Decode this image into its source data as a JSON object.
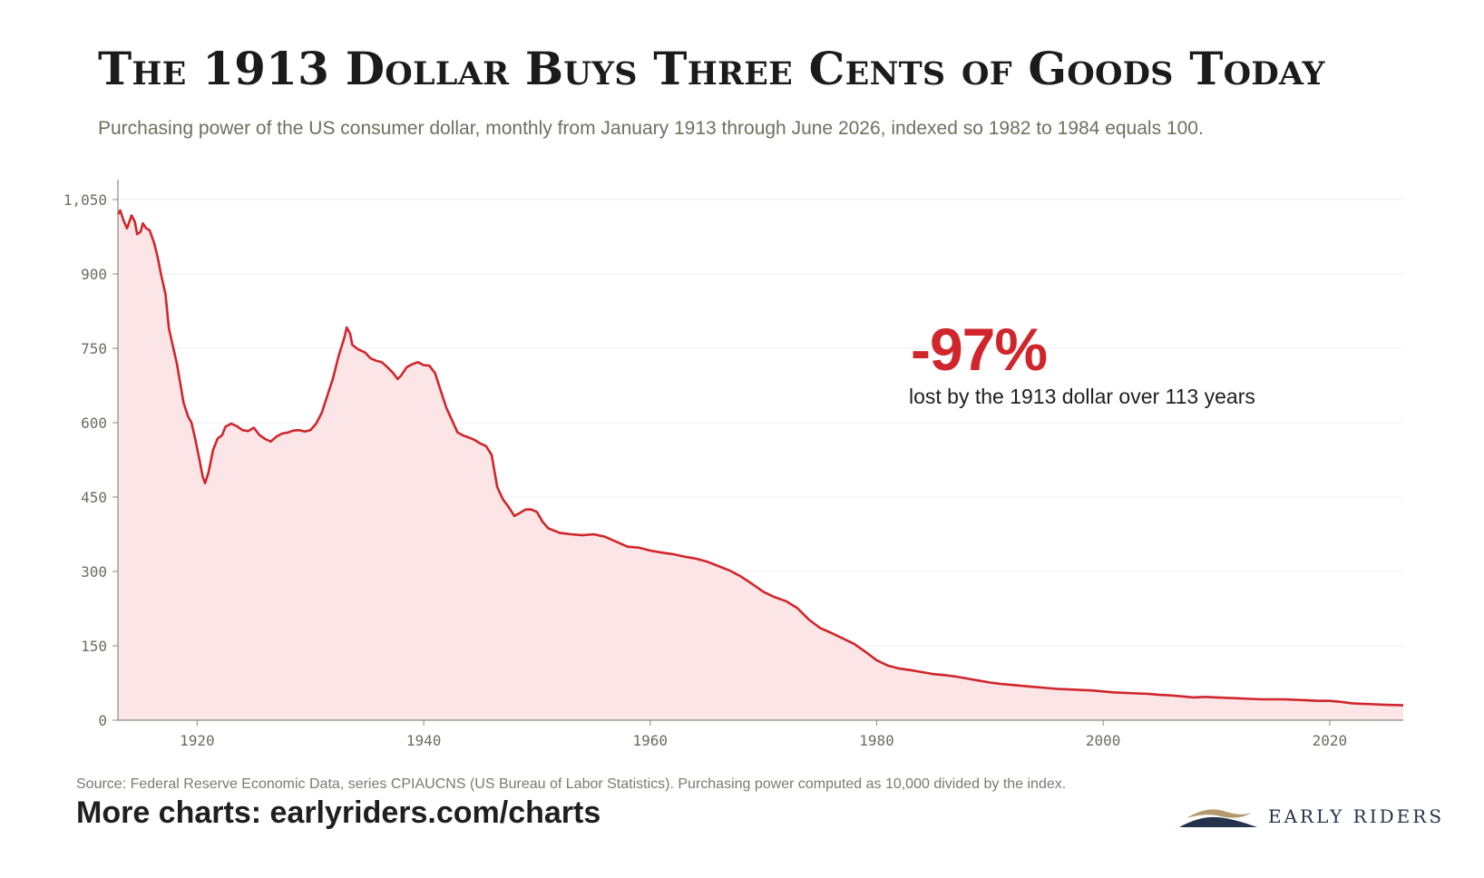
{
  "header": {
    "title": "The 1913 Dollar Buys Three Cents of Goods Today",
    "subtitle": "Purchasing power of the US consumer dollar, monthly from January 1913 through June 2026, indexed so 1982 to 1984 equals 100."
  },
  "annotation": {
    "value": "-97%",
    "text": "lost by the 1913 dollar over 113 years"
  },
  "footer": {
    "source": "Source: Federal Reserve Economic Data, series CPIAUCNS (US Bureau of Labor Statistics). Purchasing power computed as 10,000 divided by the index.",
    "more_charts": "More charts: earlyriders.com/charts",
    "brand": "EARLY RIDERS"
  },
  "colors": {
    "line": "#d0262b",
    "area_fill": "#fbe5e6",
    "gridline": "#ececec",
    "axis": "#8a8a80",
    "brand_navy": "#24324a",
    "brand_gold": "#b39a6e"
  },
  "chart_data": {
    "type": "area",
    "title": "The 1913 Dollar Buys Three Cents of Goods Today",
    "xlabel": "",
    "ylabel": "",
    "xlim": [
      1913,
      2026.5
    ],
    "ylim": [
      0,
      1050
    ],
    "xticks": [
      1920,
      1940,
      1960,
      1980,
      2000,
      2020
    ],
    "yticks": [
      0,
      150,
      300,
      450,
      600,
      750,
      900,
      1050
    ],
    "ytick_labels": [
      "0",
      "150",
      "300",
      "450",
      "600",
      "750",
      "900",
      "1,050"
    ],
    "grid": "horizontal",
    "legend": "none",
    "series": [
      {
        "values": [
          [
            1913.0,
            1020
          ],
          [
            1913.2,
            1028
          ],
          [
            1913.5,
            1008
          ],
          [
            1913.8,
            992
          ],
          [
            1914.2,
            1018
          ],
          [
            1914.5,
            1005
          ],
          [
            1914.7,
            980
          ],
          [
            1915.0,
            985
          ],
          [
            1915.2,
            1002
          ],
          [
            1915.5,
            992
          ],
          [
            1915.8,
            988
          ],
          [
            1916.2,
            962
          ],
          [
            1916.5,
            935
          ],
          [
            1916.8,
            900
          ],
          [
            1917.2,
            860
          ],
          [
            1917.5,
            790
          ],
          [
            1917.8,
            760
          ],
          [
            1918.2,
            720
          ],
          [
            1918.5,
            680
          ],
          [
            1918.8,
            640
          ],
          [
            1919.2,
            612
          ],
          [
            1919.5,
            600
          ],
          [
            1919.8,
            570
          ],
          [
            1920.2,
            525
          ],
          [
            1920.5,
            490
          ],
          [
            1920.7,
            478
          ],
          [
            1921.0,
            500
          ],
          [
            1921.4,
            545
          ],
          [
            1921.8,
            568
          ],
          [
            1922.2,
            575
          ],
          [
            1922.5,
            592
          ],
          [
            1923.0,
            598
          ],
          [
            1923.5,
            593
          ],
          [
            1924.0,
            585
          ],
          [
            1924.5,
            583
          ],
          [
            1925.0,
            590
          ],
          [
            1925.5,
            575
          ],
          [
            1926.0,
            567
          ],
          [
            1926.5,
            562
          ],
          [
            1927.0,
            572
          ],
          [
            1927.5,
            578
          ],
          [
            1928.0,
            580
          ],
          [
            1928.5,
            584
          ],
          [
            1929.0,
            585
          ],
          [
            1929.5,
            582
          ],
          [
            1930.0,
            585
          ],
          [
            1930.5,
            598
          ],
          [
            1931.0,
            620
          ],
          [
            1931.5,
            655
          ],
          [
            1932.0,
            690
          ],
          [
            1932.5,
            735
          ],
          [
            1933.0,
            772
          ],
          [
            1933.2,
            792
          ],
          [
            1933.5,
            780
          ],
          [
            1933.7,
            757
          ],
          [
            1934.2,
            748
          ],
          [
            1934.8,
            742
          ],
          [
            1935.3,
            730
          ],
          [
            1935.8,
            725
          ],
          [
            1936.3,
            722
          ],
          [
            1936.8,
            712
          ],
          [
            1937.3,
            700
          ],
          [
            1937.7,
            688
          ],
          [
            1938.0,
            695
          ],
          [
            1938.5,
            712
          ],
          [
            1939.0,
            718
          ],
          [
            1939.5,
            722
          ],
          [
            1940.0,
            716
          ],
          [
            1940.5,
            715
          ],
          [
            1941.0,
            700
          ],
          [
            1941.5,
            665
          ],
          [
            1942.0,
            630
          ],
          [
            1942.5,
            605
          ],
          [
            1943.0,
            580
          ],
          [
            1943.5,
            574
          ],
          [
            1944.0,
            570
          ],
          [
            1944.5,
            565
          ],
          [
            1945.0,
            558
          ],
          [
            1945.5,
            553
          ],
          [
            1946.0,
            535
          ],
          [
            1946.5,
            470
          ],
          [
            1947.0,
            445
          ],
          [
            1947.5,
            430
          ],
          [
            1948.0,
            412
          ],
          [
            1948.5,
            418
          ],
          [
            1949.0,
            425
          ],
          [
            1949.5,
            425
          ],
          [
            1950.0,
            420
          ],
          [
            1950.5,
            400
          ],
          [
            1951.0,
            387
          ],
          [
            1952.0,
            378
          ],
          [
            1953.0,
            375
          ],
          [
            1954.0,
            373
          ],
          [
            1955.0,
            375
          ],
          [
            1956.0,
            370
          ],
          [
            1957.0,
            360
          ],
          [
            1958.0,
            350
          ],
          [
            1959.0,
            348
          ],
          [
            1960.0,
            342
          ],
          [
            1961.0,
            338
          ],
          [
            1962.0,
            335
          ],
          [
            1963.0,
            330
          ],
          [
            1964.0,
            326
          ],
          [
            1965.0,
            320
          ],
          [
            1966.0,
            311
          ],
          [
            1967.0,
            302
          ],
          [
            1968.0,
            290
          ],
          [
            1969.0,
            275
          ],
          [
            1970.0,
            259
          ],
          [
            1971.0,
            248
          ],
          [
            1972.0,
            240
          ],
          [
            1973.0,
            226
          ],
          [
            1974.0,
            203
          ],
          [
            1975.0,
            186
          ],
          [
            1976.0,
            176
          ],
          [
            1977.0,
            165
          ],
          [
            1978.0,
            154
          ],
          [
            1979.0,
            138
          ],
          [
            1980.0,
            121
          ],
          [
            1981.0,
            110
          ],
          [
            1982.0,
            104
          ],
          [
            1983.0,
            101
          ],
          [
            1984.0,
            97
          ],
          [
            1985.0,
            93
          ],
          [
            1986.0,
            91
          ],
          [
            1987.0,
            88
          ],
          [
            1988.0,
            84
          ],
          [
            1989.0,
            80
          ],
          [
            1990.0,
            76
          ],
          [
            1991.0,
            73
          ],
          [
            1992.0,
            71
          ],
          [
            1993.0,
            69
          ],
          [
            1994.0,
            67
          ],
          [
            1995.0,
            65
          ],
          [
            1996.0,
            63
          ],
          [
            1997.0,
            62
          ],
          [
            1998.0,
            61
          ],
          [
            1999.0,
            60
          ],
          [
            2000.0,
            58
          ],
          [
            2001.0,
            56
          ],
          [
            2002.0,
            55
          ],
          [
            2003.0,
            54
          ],
          [
            2004.0,
            53
          ],
          [
            2005.0,
            51
          ],
          [
            2006.0,
            50
          ],
          [
            2007.0,
            48
          ],
          [
            2008.0,
            46
          ],
          [
            2009.0,
            47
          ],
          [
            2010.0,
            46
          ],
          [
            2011.0,
            45
          ],
          [
            2012.0,
            44
          ],
          [
            2013.0,
            43
          ],
          [
            2014.0,
            42
          ],
          [
            2015.0,
            42
          ],
          [
            2016.0,
            42
          ],
          [
            2017.0,
            41
          ],
          [
            2018.0,
            40
          ],
          [
            2019.0,
            39
          ],
          [
            2020.0,
            39
          ],
          [
            2021.0,
            37
          ],
          [
            2022.0,
            34
          ],
          [
            2023.0,
            33
          ],
          [
            2024.0,
            32
          ],
          [
            2025.0,
            31
          ],
          [
            2026.5,
            30
          ]
        ]
      }
    ]
  }
}
